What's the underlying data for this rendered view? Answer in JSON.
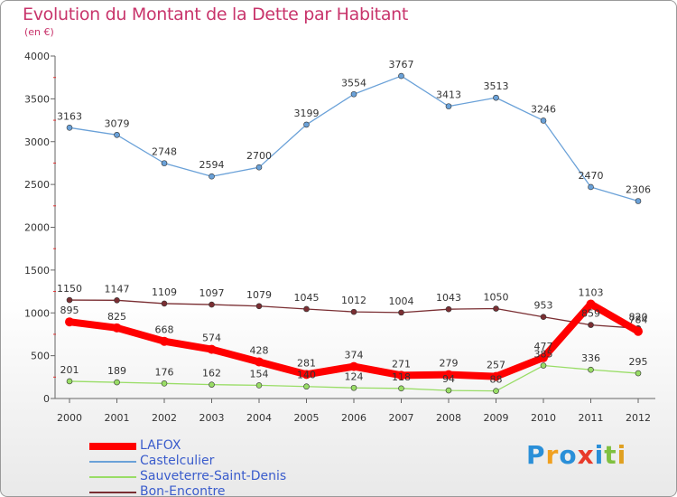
{
  "chart_data": {
    "type": "line",
    "title": "Evolution du Montant de la Dette par Habitant",
    "subtitle": "(en €)",
    "categories": [
      "2000",
      "2001",
      "2002",
      "2003",
      "2004",
      "2005",
      "2006",
      "2007",
      "2008",
      "2009",
      "2010",
      "2011",
      "2012"
    ],
    "ylim": [
      0,
      4000
    ],
    "yticks": [
      0,
      500,
      1000,
      1500,
      2000,
      2500,
      3000,
      3500,
      4000
    ],
    "grid": false,
    "legend_position": "bottom-left",
    "series": [
      {
        "name": "LAFOX",
        "color": "#ff0000",
        "values": [
          895,
          825,
          668,
          574,
          428,
          281,
          374,
          271,
          279,
          257,
          477,
          1103,
          784
        ]
      },
      {
        "name": "Castelculier",
        "color": "#6aa1d8",
        "values": [
          3163,
          3079,
          2748,
          2594,
          2700,
          3199,
          3554,
          3767,
          3413,
          3513,
          3246,
          2470,
          2306
        ]
      },
      {
        "name": "Sauveterre-Saint-Denis",
        "color": "#99dd66",
        "values": [
          201,
          189,
          176,
          162,
          154,
          140,
          124,
          118,
          94,
          88,
          385,
          336,
          295
        ]
      },
      {
        "name": "Bon-Encontre",
        "color": "#7a2e32",
        "values": [
          1150,
          1147,
          1109,
          1097,
          1079,
          1045,
          1012,
          1004,
          1043,
          1050,
          953,
          859,
          820
        ]
      }
    ]
  },
  "logo": {
    "letters": [
      "P",
      "r",
      "o",
      "x",
      "i",
      "t",
      "i"
    ],
    "colors": [
      "#2a8fd8",
      "#f0a020",
      "#2a8fd8",
      "#e83a2a",
      "#2a8fd8",
      "#80c040",
      "#e0a020"
    ]
  }
}
